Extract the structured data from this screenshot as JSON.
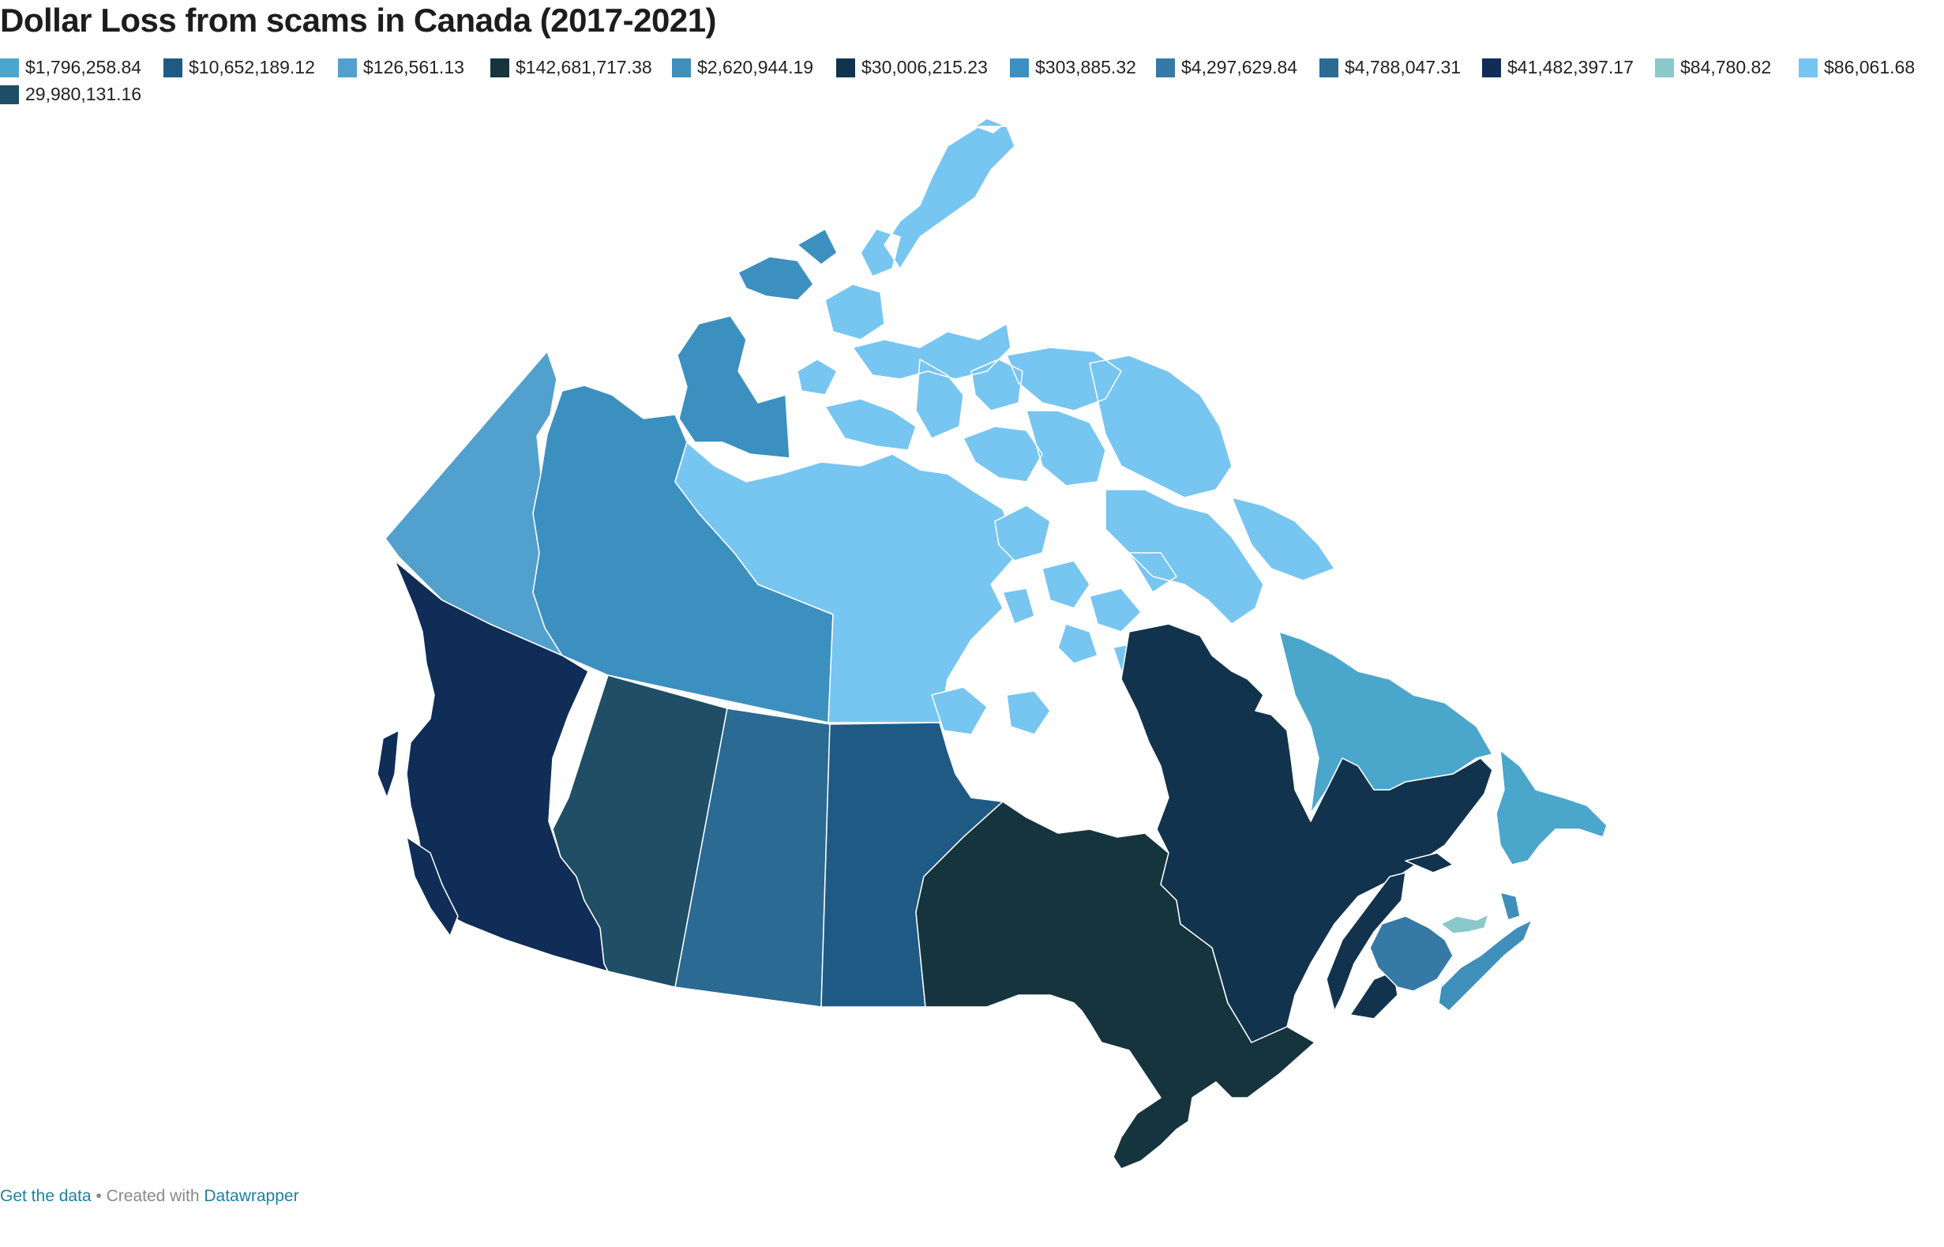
{
  "title": "Dollar Loss from scams in Canada (2017-2021)",
  "legend": [
    {
      "label": "$1,796,258.84",
      "color": "#4aa7cb"
    },
    {
      "label": "$10,652,189.12",
      "color": "#1f5a85"
    },
    {
      "label": "$126,561.13",
      "color": "#52a0cd"
    },
    {
      "label": "$142,681,717.38",
      "color": "#16343d"
    },
    {
      "label": "$2,620,944.19",
      "color": "#3f8fbb"
    },
    {
      "label": "$30,006,215.23",
      "color": "#12334d"
    },
    {
      "label": "$303,885.32",
      "color": "#3b90c0"
    },
    {
      "label": "$4,297,629.84",
      "color": "#357aa7"
    },
    {
      "label": "$4,788,047.31",
      "color": "#2a6a93"
    },
    {
      "label": "$41,482,397.17",
      "color": "#0f2d57"
    },
    {
      "label": "$84,780.82",
      "color": "#8bc8cc"
    },
    {
      "label": "$86,061.68",
      "color": "#77c5f1"
    },
    {
      "label": "29,980,131.16",
      "color": "#1f4e66"
    }
  ],
  "regions": [
    {
      "name": "British Columbia",
      "value": "$41,482,397.17",
      "color": "#0f2d57"
    },
    {
      "name": "Alberta",
      "value": "29,980,131.16",
      "color": "#1f4e66"
    },
    {
      "name": "Saskatchewan",
      "value": "$4,788,047.31",
      "color": "#2a6a93"
    },
    {
      "name": "Manitoba",
      "value": "$10,652,189.12",
      "color": "#1f5a85"
    },
    {
      "name": "Ontario",
      "value": "$142,681,717.38",
      "color": "#16343d"
    },
    {
      "name": "Quebec",
      "value": "$30,006,215.23",
      "color": "#12334d"
    },
    {
      "name": "New Brunswick",
      "value": "$4,297,629.84",
      "color": "#357aa7"
    },
    {
      "name": "Nova Scotia",
      "value": "$2,620,944.19",
      "color": "#3f8fbb"
    },
    {
      "name": "Prince Edward Island",
      "value": "$84,780.82",
      "color": "#8bc8cc"
    },
    {
      "name": "Newfoundland and Labrador",
      "value": "$1,796,258.84",
      "color": "#4aa7cb"
    },
    {
      "name": "Yukon",
      "value": "$126,561.13",
      "color": "#52a0cd"
    },
    {
      "name": "Northwest Territories",
      "value": "$303,885.32",
      "color": "#3b90c0"
    },
    {
      "name": "Nunavut",
      "value": "$86,061.68",
      "color": "#77c5f1"
    }
  ],
  "footer": {
    "get_data": "Get the data",
    "separator": " • Created with ",
    "datawrapper": "Datawrapper"
  }
}
